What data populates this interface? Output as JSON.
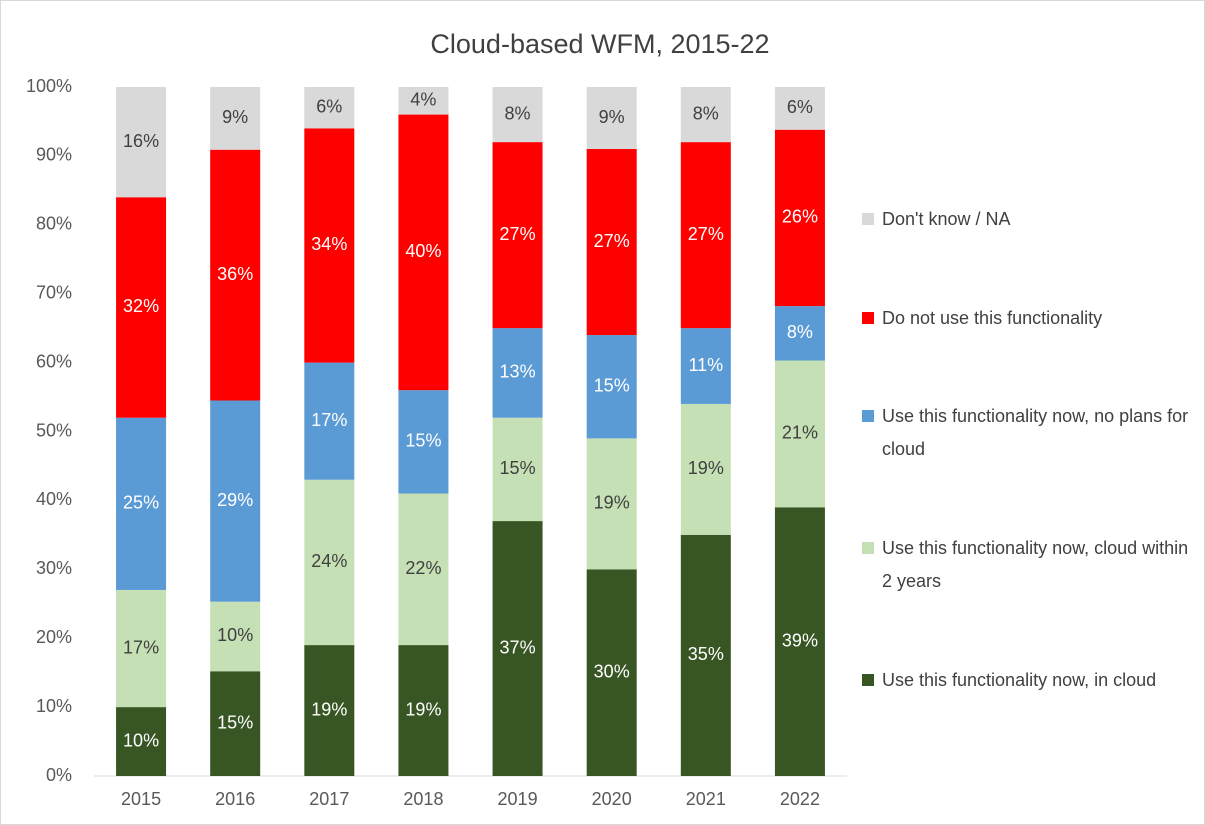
{
  "chart_data": {
    "type": "stacked_bar",
    "title": "Cloud-based WFM, 2015-22",
    "categories": [
      "2015",
      "2016",
      "2017",
      "2018",
      "2019",
      "2020",
      "2021",
      "2022"
    ],
    "ylim": [
      0,
      100
    ],
    "yticks": [
      {
        "value": 0,
        "label": "0%"
      },
      {
        "value": 10,
        "label": "10%"
      },
      {
        "value": 20,
        "label": "20%"
      },
      {
        "value": 30,
        "label": "30%"
      },
      {
        "value": 40,
        "label": "40%"
      },
      {
        "value": 50,
        "label": "50%"
      },
      {
        "value": 60,
        "label": "60%"
      },
      {
        "value": 70,
        "label": "70%"
      },
      {
        "value": 80,
        "label": "80%"
      },
      {
        "value": 90,
        "label": "90%"
      },
      {
        "value": 100,
        "label": "100%"
      }
    ],
    "series": [
      {
        "name": "Use this functionality now, in cloud",
        "color": "#375623",
        "label_color": "#ffffff",
        "values": [
          10,
          15.2,
          19,
          19,
          37,
          30,
          35,
          39
        ],
        "value_labels": [
          "10%",
          "15%",
          "19%",
          "19%",
          "37%",
          "30%",
          "35%",
          "39%"
        ]
      },
      {
        "name": "Use this functionality now, cloud within 2 years",
        "color": "#c5e0b4",
        "label_color": "#404040",
        "values": [
          17,
          10.1,
          24,
          22,
          15,
          19,
          19,
          21.3
        ],
        "value_labels": [
          "17%",
          "10%",
          "24%",
          "22%",
          "15%",
          "19%",
          "19%",
          "21%"
        ]
      },
      {
        "name": "Use this functionality now, no plans for cloud",
        "color": "#5b9bd5",
        "label_color": "#ffffff",
        "values": [
          25,
          29.2,
          17,
          15,
          13,
          15,
          11,
          7.9
        ],
        "value_labels": [
          "25%",
          "29%",
          "17%",
          "15%",
          "13%",
          "15%",
          "11%",
          "8%"
        ]
      },
      {
        "name": "Do not use this functionality",
        "color": "#ff0000",
        "label_color": "#ffffff",
        "values": [
          32,
          36.4,
          34,
          40,
          27,
          27,
          27,
          25.6
        ],
        "value_labels": [
          "32%",
          "36%",
          "34%",
          "40%",
          "27%",
          "27%",
          "27%",
          "26%"
        ]
      },
      {
        "name": "Don't know / NA",
        "color": "#d9d9d9",
        "label_color": "#404040",
        "values": [
          16,
          9.1,
          6,
          4,
          8,
          9,
          8,
          6.2
        ],
        "value_labels": [
          "16%",
          "9%",
          "6%",
          "4%",
          "8%",
          "9%",
          "8%",
          "6%"
        ]
      }
    ]
  }
}
